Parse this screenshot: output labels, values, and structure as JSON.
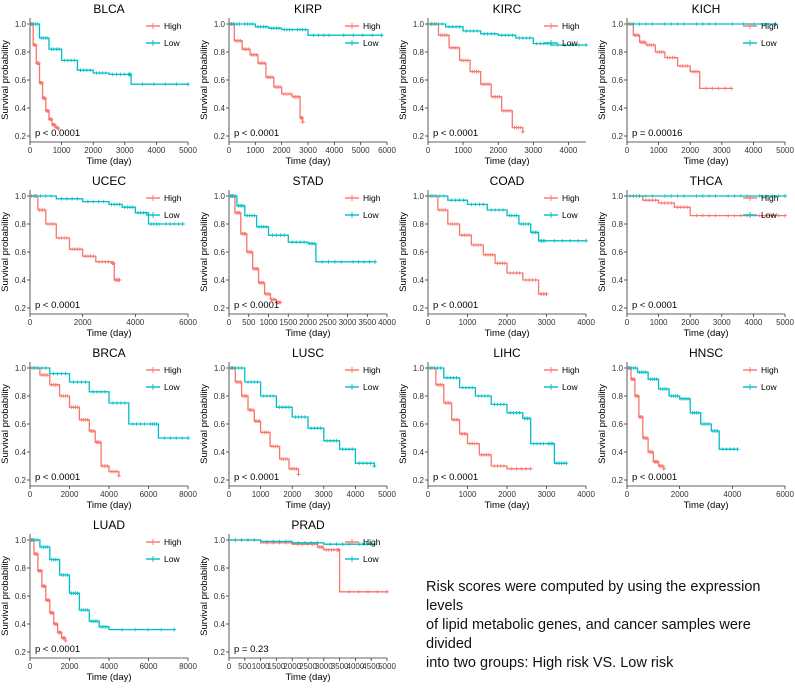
{
  "colors": {
    "high": "#F8766D",
    "low": "#00BFC4",
    "axis": "#333333",
    "text": "#000000"
  },
  "legend": {
    "high": "High",
    "low": "Low"
  },
  "caption": "Risk scores were computed by using the expression levels\nof lipid metabolic genes, and cancer samples were divided\n into two groups: High risk VS. Low risk",
  "chart_data": [
    {
      "type": "line",
      "title": "BLCA",
      "xlabel": "Time (day)",
      "ylabel": "Survival probability",
      "xlim": [
        0,
        5000
      ],
      "ylim": [
        0.2,
        1.0
      ],
      "xticks": [
        0,
        1000,
        2000,
        3000,
        4000,
        5000
      ],
      "yticks": [
        0.2,
        0.4,
        0.6,
        0.8,
        1.0
      ],
      "pvalue": "p < 0.0001",
      "series": [
        {
          "name": "High",
          "x": [
            0,
            100,
            200,
            300,
            400,
            500,
            600,
            700,
            800,
            900
          ],
          "y": [
            1.0,
            0.85,
            0.72,
            0.58,
            0.47,
            0.38,
            0.32,
            0.28,
            0.26,
            0.25
          ]
        },
        {
          "name": "Low",
          "x": [
            0,
            300,
            600,
            1000,
            1500,
            2000,
            2500,
            3100,
            3200,
            5000
          ],
          "y": [
            1.0,
            0.9,
            0.82,
            0.74,
            0.67,
            0.65,
            0.64,
            0.64,
            0.57,
            0.57
          ]
        }
      ]
    },
    {
      "type": "line",
      "title": "KIRP",
      "xlabel": "Time (day)",
      "ylabel": "Survival probability",
      "xlim": [
        0,
        6000
      ],
      "ylim": [
        0.2,
        1.0
      ],
      "xticks": [
        0,
        1000,
        2000,
        3000,
        4000,
        5000,
        6000
      ],
      "yticks": [
        0.2,
        0.4,
        0.6,
        0.8,
        1.0
      ],
      "pvalue": "p < 0.0001",
      "series": [
        {
          "name": "High",
          "x": [
            0,
            200,
            500,
            800,
            1100,
            1400,
            1700,
            2000,
            2400,
            2700,
            2800
          ],
          "y": [
            1.0,
            0.88,
            0.82,
            0.78,
            0.72,
            0.62,
            0.55,
            0.5,
            0.48,
            0.33,
            0.3
          ]
        },
        {
          "name": "Low",
          "x": [
            0,
            500,
            1000,
            1500,
            2000,
            2500,
            3000,
            4000,
            5800
          ],
          "y": [
            1.0,
            1.0,
            0.98,
            0.97,
            0.96,
            0.96,
            0.92,
            0.92,
            0.92
          ]
        }
      ]
    },
    {
      "type": "line",
      "title": "KIRC",
      "xlabel": "Time (day)",
      "ylabel": "Survival probability",
      "xlim": [
        0,
        4500
      ],
      "ylim": [
        0.2,
        1.0
      ],
      "xticks": [
        0,
        1000,
        2000,
        3000,
        4000
      ],
      "yticks": [
        0.2,
        0.4,
        0.6,
        0.8,
        1.0
      ],
      "pvalue": "p < 0.0001",
      "series": [
        {
          "name": "High",
          "x": [
            0,
            300,
            600,
            900,
            1200,
            1500,
            1800,
            2100,
            2400,
            2700
          ],
          "y": [
            1.0,
            0.92,
            0.83,
            0.74,
            0.66,
            0.57,
            0.48,
            0.38,
            0.26,
            0.23
          ]
        },
        {
          "name": "Low",
          "x": [
            0,
            500,
            1000,
            1500,
            2000,
            2500,
            3000,
            3500,
            4500
          ],
          "y": [
            1.0,
            0.98,
            0.95,
            0.93,
            0.92,
            0.9,
            0.86,
            0.85,
            0.85
          ]
        }
      ]
    },
    {
      "type": "line",
      "title": "KICH",
      "xlabel": "Time (day)",
      "ylabel": "Survival probability",
      "xlim": [
        0,
        5000
      ],
      "ylim": [
        0.2,
        1.0
      ],
      "xticks": [
        0,
        1000,
        2000,
        3000,
        4000,
        5000
      ],
      "yticks": [
        0.2,
        0.4,
        0.6,
        0.8,
        1.0
      ],
      "pvalue": "p = 0.00016",
      "series": [
        {
          "name": "High",
          "x": [
            0,
            200,
            400,
            600,
            900,
            1200,
            1600,
            2000,
            2300,
            3300
          ],
          "y": [
            1.0,
            0.92,
            0.87,
            0.85,
            0.8,
            0.76,
            0.7,
            0.66,
            0.54,
            0.54
          ]
        },
        {
          "name": "Low",
          "x": [
            0,
            1000,
            2000,
            3000,
            4700
          ],
          "y": [
            1.0,
            1.0,
            1.0,
            1.0,
            1.0
          ]
        }
      ]
    },
    {
      "type": "line",
      "title": "UCEC",
      "xlabel": "Time (day)",
      "ylabel": "Survival probability",
      "xlim": [
        0,
        6000
      ],
      "ylim": [
        0.2,
        1.0
      ],
      "xticks": [
        0,
        2000,
        4000,
        6000
      ],
      "yticks": [
        0.2,
        0.4,
        0.6,
        0.8,
        1.0
      ],
      "pvalue": "p < 0.0001",
      "series": [
        {
          "name": "High",
          "x": [
            0,
            300,
            600,
            1000,
            1500,
            2000,
            2500,
            3100,
            3200,
            3400
          ],
          "y": [
            1.0,
            0.9,
            0.8,
            0.7,
            0.62,
            0.57,
            0.53,
            0.52,
            0.4,
            0.4
          ]
        },
        {
          "name": "Low",
          "x": [
            0,
            1000,
            2000,
            3000,
            3500,
            4000,
            4500,
            5000,
            5800
          ],
          "y": [
            1.0,
            0.98,
            0.96,
            0.94,
            0.92,
            0.88,
            0.8,
            0.8,
            0.8
          ]
        }
      ]
    },
    {
      "type": "line",
      "title": "STAD",
      "xlabel": "Time (day)",
      "ylabel": "Survival probability",
      "xlim": [
        0,
        4000
      ],
      "ylim": [
        0.2,
        1.0
      ],
      "xticks": [
        0,
        500,
        1000,
        1500,
        2000,
        2500,
        3000,
        3500,
        4000
      ],
      "yticks": [
        0.2,
        0.4,
        0.6,
        0.8,
        1.0
      ],
      "pvalue": "p < 0.0001",
      "series": [
        {
          "name": "High",
          "x": [
            0,
            150,
            300,
            450,
            600,
            750,
            900,
            1050,
            1200,
            1300
          ],
          "y": [
            1.0,
            0.88,
            0.73,
            0.6,
            0.48,
            0.38,
            0.3,
            0.26,
            0.24,
            0.24
          ]
        },
        {
          "name": "Low",
          "x": [
            0,
            200,
            400,
            700,
            1000,
            1500,
            2000,
            2200,
            3000,
            3700
          ],
          "y": [
            1.0,
            0.93,
            0.86,
            0.78,
            0.72,
            0.67,
            0.66,
            0.53,
            0.53,
            0.53
          ]
        }
      ]
    },
    {
      "type": "line",
      "title": "COAD",
      "xlabel": "Time (day)",
      "ylabel": "Survival probability",
      "xlim": [
        0,
        4000
      ],
      "ylim": [
        0.2,
        1.0
      ],
      "xticks": [
        0,
        1000,
        2000,
        3000,
        4000
      ],
      "yticks": [
        0.2,
        0.4,
        0.6,
        0.8,
        1.0
      ],
      "pvalue": "p < 0.0001",
      "series": [
        {
          "name": "High",
          "x": [
            0,
            250,
            500,
            800,
            1100,
            1400,
            1700,
            2000,
            2400,
            2800,
            3000
          ],
          "y": [
            1.0,
            0.9,
            0.8,
            0.72,
            0.65,
            0.58,
            0.52,
            0.45,
            0.4,
            0.3,
            0.3
          ]
        },
        {
          "name": "Low",
          "x": [
            0,
            500,
            1000,
            1500,
            2000,
            2300,
            2600,
            2800,
            3000,
            4000
          ],
          "y": [
            1.0,
            0.97,
            0.94,
            0.9,
            0.86,
            0.8,
            0.74,
            0.68,
            0.68,
            0.68
          ]
        }
      ]
    },
    {
      "type": "line",
      "title": "THCA",
      "xlabel": "Time (day)",
      "ylabel": "Survival probability",
      "xlim": [
        0,
        5000
      ],
      "ylim": [
        0.2,
        1.0
      ],
      "xticks": [
        0,
        1000,
        2000,
        3000,
        4000,
        5000
      ],
      "yticks": [
        0.2,
        0.4,
        0.6,
        0.8,
        1.0
      ],
      "pvalue": "p < 0.0001",
      "series": [
        {
          "name": "High",
          "x": [
            0,
            500,
            1000,
            1500,
            2000,
            3000,
            4000,
            5000
          ],
          "y": [
            1.0,
            0.97,
            0.95,
            0.92,
            0.86,
            0.86,
            0.86,
            0.86
          ]
        },
        {
          "name": "Low",
          "x": [
            0,
            1000,
            2000,
            3000,
            4000,
            5000
          ],
          "y": [
            1.0,
            1.0,
            1.0,
            1.0,
            1.0,
            1.0
          ]
        }
      ]
    },
    {
      "type": "line",
      "title": "BRCA",
      "xlabel": "Time (day)",
      "ylabel": "Survival probability",
      "xlim": [
        0,
        8000
      ],
      "ylim": [
        0.2,
        1.0
      ],
      "xticks": [
        0,
        2000,
        4000,
        6000,
        8000
      ],
      "yticks": [
        0.2,
        0.4,
        0.6,
        0.8,
        1.0
      ],
      "pvalue": "p < 0.0001",
      "series": [
        {
          "name": "High",
          "x": [
            0,
            500,
            1000,
            1500,
            2000,
            2500,
            3000,
            3300,
            3600,
            4000,
            4500
          ],
          "y": [
            1.0,
            0.95,
            0.88,
            0.8,
            0.72,
            0.63,
            0.55,
            0.47,
            0.3,
            0.26,
            0.23
          ]
        },
        {
          "name": "Low",
          "x": [
            0,
            1000,
            2000,
            3000,
            4000,
            5000,
            6000,
            6500,
            8000
          ],
          "y": [
            1.0,
            0.96,
            0.9,
            0.83,
            0.75,
            0.6,
            0.6,
            0.5,
            0.5
          ]
        }
      ]
    },
    {
      "type": "line",
      "title": "LUSC",
      "xlabel": "Time (day)",
      "ylabel": "Survival probability",
      "xlim": [
        0,
        5000
      ],
      "ylim": [
        0.2,
        1.0
      ],
      "xticks": [
        0,
        1000,
        2000,
        3000,
        4000,
        5000
      ],
      "yticks": [
        0.2,
        0.4,
        0.6,
        0.8,
        1.0
      ],
      "pvalue": "p < 0.0001",
      "series": [
        {
          "name": "High",
          "x": [
            0,
            200,
            400,
            600,
            800,
            1000,
            1300,
            1600,
            1900,
            2200
          ],
          "y": [
            1.0,
            0.9,
            0.8,
            0.7,
            0.62,
            0.54,
            0.44,
            0.35,
            0.28,
            0.24
          ]
        },
        {
          "name": "Low",
          "x": [
            0,
            500,
            1000,
            1500,
            2000,
            2500,
            3000,
            3500,
            4000,
            4600
          ],
          "y": [
            1.0,
            0.9,
            0.8,
            0.72,
            0.65,
            0.57,
            0.48,
            0.42,
            0.32,
            0.3
          ]
        }
      ]
    },
    {
      "type": "line",
      "title": "LIHC",
      "xlabel": "Time (day)",
      "ylabel": "Survival probability",
      "xlim": [
        0,
        4000
      ],
      "ylim": [
        0.2,
        1.0
      ],
      "xticks": [
        0,
        1000,
        2000,
        3000,
        4000
      ],
      "yticks": [
        0.2,
        0.4,
        0.6,
        0.8,
        1.0
      ],
      "pvalue": "p < 0.0001",
      "series": [
        {
          "name": "High",
          "x": [
            0,
            200,
            400,
            600,
            800,
            1000,
            1300,
            1600,
            2000,
            2600
          ],
          "y": [
            1.0,
            0.88,
            0.75,
            0.63,
            0.53,
            0.46,
            0.38,
            0.3,
            0.28,
            0.28
          ]
        },
        {
          "name": "Low",
          "x": [
            0,
            400,
            800,
            1200,
            1600,
            2000,
            2400,
            2600,
            3000,
            3200,
            3500
          ],
          "y": [
            1.0,
            0.93,
            0.86,
            0.8,
            0.74,
            0.68,
            0.64,
            0.46,
            0.46,
            0.32,
            0.32
          ]
        }
      ]
    },
    {
      "type": "line",
      "title": "HNSC",
      "xlabel": "Time (day)",
      "ylabel": "Survival probability",
      "xlim": [
        0,
        6000
      ],
      "ylim": [
        0.2,
        1.0
      ],
      "xticks": [
        0,
        2000,
        4000,
        6000
      ],
      "yticks": [
        0.2,
        0.4,
        0.6,
        0.8,
        1.0
      ],
      "pvalue": "p < 0.0001",
      "series": [
        {
          "name": "High",
          "x": [
            0,
            150,
            300,
            450,
            600,
            800,
            1000,
            1200,
            1400
          ],
          "y": [
            1.0,
            0.92,
            0.8,
            0.65,
            0.5,
            0.4,
            0.33,
            0.3,
            0.28
          ]
        },
        {
          "name": "Low",
          "x": [
            0,
            400,
            800,
            1200,
            1600,
            2000,
            2400,
            2800,
            3200,
            3500,
            4200
          ],
          "y": [
            1.0,
            0.97,
            0.92,
            0.85,
            0.8,
            0.78,
            0.68,
            0.6,
            0.55,
            0.42,
            0.42
          ]
        }
      ]
    },
    {
      "type": "line",
      "title": "LUAD",
      "xlabel": "Time (day)",
      "ylabel": "Survival probability",
      "xlim": [
        0,
        8000
      ],
      "ylim": [
        0.2,
        1.0
      ],
      "xticks": [
        0,
        2000,
        4000,
        6000,
        8000
      ],
      "yticks": [
        0.2,
        0.4,
        0.6,
        0.8,
        1.0
      ],
      "pvalue": "p < 0.0001",
      "series": [
        {
          "name": "High",
          "x": [
            0,
            200,
            400,
            600,
            800,
            1000,
            1200,
            1400,
            1600,
            1800
          ],
          "y": [
            1.0,
            0.9,
            0.78,
            0.67,
            0.57,
            0.48,
            0.4,
            0.34,
            0.3,
            0.28
          ]
        },
        {
          "name": "Low",
          "x": [
            0,
            500,
            1000,
            1500,
            2000,
            2500,
            3000,
            3500,
            4000,
            7300
          ],
          "y": [
            1.0,
            0.95,
            0.86,
            0.75,
            0.62,
            0.5,
            0.42,
            0.38,
            0.36,
            0.36
          ]
        }
      ]
    },
    {
      "type": "line",
      "title": "PRAD",
      "xlabel": "Time (day)",
      "ylabel": "Survival probability",
      "xlim": [
        0,
        5000
      ],
      "ylim": [
        0.2,
        1.0
      ],
      "xticks": [
        0,
        500,
        1000,
        1500,
        2000,
        2500,
        3000,
        3500,
        4000,
        4500,
        5000
      ],
      "yticks": [
        0.2,
        0.4,
        0.6,
        0.8,
        1.0
      ],
      "pvalue": "p = 0.23",
      "series": [
        {
          "name": "High",
          "x": [
            0,
            1000,
            2000,
            2800,
            3000,
            3400,
            3500,
            5000
          ],
          "y": [
            1.0,
            0.98,
            0.97,
            0.95,
            0.93,
            0.93,
            0.63,
            0.63
          ]
        },
        {
          "name": "Low",
          "x": [
            0,
            1000,
            2000,
            3000,
            4000,
            4600
          ],
          "y": [
            1.0,
            0.99,
            0.98,
            0.97,
            0.97,
            0.97
          ]
        }
      ]
    }
  ]
}
